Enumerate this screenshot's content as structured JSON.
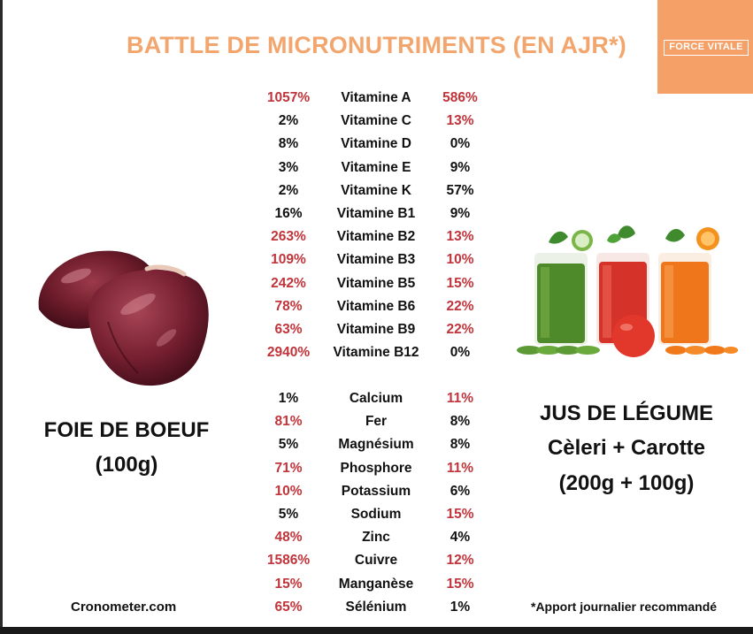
{
  "title": "BATTLE DE MICRONUTRIMENTS (EN AJR*)",
  "brand": "FORCE VITALE",
  "left_subject": {
    "line1": "FOIE DE BOEUF",
    "line2": "(100g)"
  },
  "right_subject": {
    "line1": "JUS DE LÉGUME",
    "line2": "Cèleri + Carotte",
    "line3": "(200g + 100g)"
  },
  "vitamins": [
    {
      "left": "1057%",
      "name": "Vitamine A",
      "right": "586%",
      "left_winner": true,
      "right_winner": true
    },
    {
      "left": "2%",
      "name": "Vitamine C",
      "right": "13%",
      "left_winner": false,
      "right_winner": true
    },
    {
      "left": "8%",
      "name": "Vitamine D",
      "right": "0%",
      "left_winner": false,
      "right_winner": false
    },
    {
      "left": "3%",
      "name": "Vitamine E",
      "right": "9%",
      "left_winner": false,
      "right_winner": false
    },
    {
      "left": "2%",
      "name": "Vitamine K",
      "right": "57%",
      "left_winner": false,
      "right_winner": false
    },
    {
      "left": "16%",
      "name": "Vitamine B1",
      "right": "9%",
      "left_winner": false,
      "right_winner": false
    },
    {
      "left": "263%",
      "name": "Vitamine B2",
      "right": "13%",
      "left_winner": true,
      "right_winner": true
    },
    {
      "left": "109%",
      "name": "Vitamine B3",
      "right": "10%",
      "left_winner": true,
      "right_winner": true
    },
    {
      "left": "242%",
      "name": "Vitamine B5",
      "right": "15%",
      "left_winner": true,
      "right_winner": true
    },
    {
      "left": "78%",
      "name": "Vitamine B6",
      "right": "22%",
      "left_winner": true,
      "right_winner": true
    },
    {
      "left": "63%",
      "name": "Vitamine B9",
      "right": "22%",
      "left_winner": true,
      "right_winner": true
    },
    {
      "left": "2940%",
      "name": "Vitamine B12",
      "right": "0%",
      "left_winner": true,
      "right_winner": false
    }
  ],
  "minerals": [
    {
      "left": "1%",
      "name": "Calcium",
      "right": "11%",
      "left_winner": false,
      "right_winner": true
    },
    {
      "left": "81%",
      "name": "Fer",
      "right": "8%",
      "left_winner": true,
      "right_winner": false
    },
    {
      "left": "5%",
      "name": "Magnésium",
      "right": "8%",
      "left_winner": false,
      "right_winner": false
    },
    {
      "left": "71%",
      "name": "Phosphore",
      "right": "11%",
      "left_winner": true,
      "right_winner": true
    },
    {
      "left": "10%",
      "name": "Potassium",
      "right": "6%",
      "left_winner": true,
      "right_winner": false
    },
    {
      "left": "5%",
      "name": "Sodium",
      "right": "15%",
      "left_winner": false,
      "right_winner": true
    },
    {
      "left": "48%",
      "name": "Zinc",
      "right": "4%",
      "left_winner": true,
      "right_winner": false
    },
    {
      "left": "1586%",
      "name": "Cuivre",
      "right": "12%",
      "left_winner": true,
      "right_winner": true
    },
    {
      "left": "15%",
      "name": "Manganèse",
      "right": "15%",
      "left_winner": true,
      "right_winner": true
    },
    {
      "left": "65%",
      "name": "Sélénium",
      "right": "1%",
      "left_winner": true,
      "right_winner": false
    }
  ],
  "footer": {
    "source": "Cronometer.com",
    "note": "*Apport journalier recommandé"
  },
  "colors": {
    "title": "#f2a66d",
    "brand_bg": "#f4a066",
    "highlight": "#c0343b",
    "text": "#111111"
  },
  "images": {
    "left": "beef-liver-photo",
    "right": "vegetable-juice-glasses-photo"
  }
}
